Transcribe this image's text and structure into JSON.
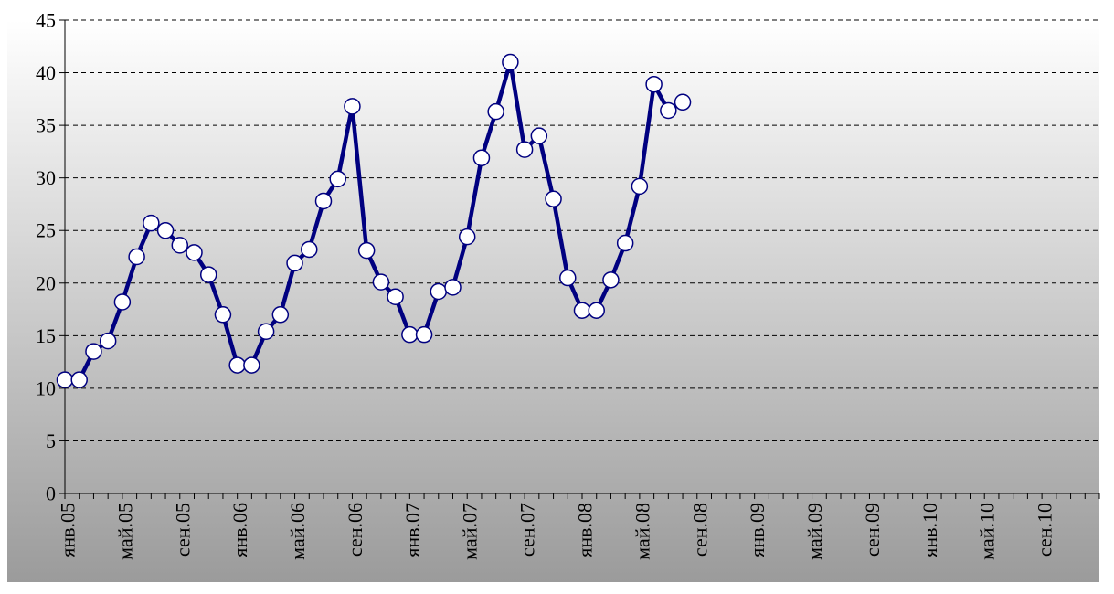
{
  "chart_data": {
    "type": "line",
    "title": "",
    "xlabel": "",
    "ylabel": "",
    "ylim": [
      0,
      45
    ],
    "y_ticks": [
      0,
      5,
      10,
      15,
      20,
      25,
      30,
      35,
      40,
      45
    ],
    "x_start_month": "2005-01",
    "x_end_month": "2010-12",
    "x_tick_labels": [
      "янв.05",
      "май.05",
      "сен.05",
      "янв.06",
      "май.06",
      "сен.06",
      "янв.07",
      "май.07",
      "сен.07",
      "янв.08",
      "май.08",
      "сен.08",
      "янв.09",
      "май.09",
      "сен.09",
      "янв.10",
      "май.10",
      "сен.10"
    ],
    "grid": "horizontal-dashed",
    "legend": "none",
    "colors": {
      "line": "#000080",
      "marker_fill": "#ffffff",
      "marker_stroke": "#000080",
      "bg_top": "#ffffff",
      "bg_bottom": "#9b9b9b",
      "grid": "#000000"
    },
    "series": [
      {
        "x": [
          "2005-01",
          "2005-02",
          "2005-03",
          "2005-04",
          "2005-05",
          "2005-06",
          "2005-07",
          "2005-08",
          "2005-09",
          "2005-10",
          "2005-11",
          "2005-12",
          "2006-01",
          "2006-02",
          "2006-03",
          "2006-04",
          "2006-05",
          "2006-06",
          "2006-07",
          "2006-08",
          "2006-09",
          "2006-10",
          "2006-11",
          "2006-12",
          "2007-01",
          "2007-02",
          "2007-03",
          "2007-04",
          "2007-05",
          "2007-06",
          "2007-07",
          "2007-08",
          "2007-09",
          "2007-10",
          "2007-11",
          "2007-12",
          "2008-01",
          "2008-02",
          "2008-03",
          "2008-04",
          "2008-05",
          "2008-06",
          "2008-07",
          "2008-08"
        ],
        "values": [
          10.8,
          10.8,
          13.5,
          14.5,
          18.2,
          22.5,
          25.7,
          25.0,
          23.6,
          22.9,
          20.8,
          17.0,
          12.2,
          12.2,
          15.4,
          17.0,
          21.9,
          23.2,
          27.8,
          29.9,
          36.8,
          23.1,
          20.1,
          18.7,
          15.1,
          15.1,
          19.2,
          19.6,
          24.4,
          31.9,
          36.3,
          41.0,
          32.7,
          34.0,
          28.0,
          20.5,
          17.4,
          17.4,
          20.3,
          23.8,
          29.2,
          38.9,
          36.4,
          37.2
        ]
      }
    ]
  }
}
